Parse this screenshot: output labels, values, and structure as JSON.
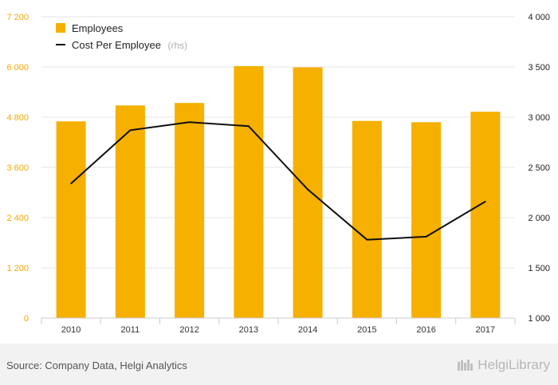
{
  "chart_data": {
    "type": "bar",
    "categories": [
      "2010",
      "2011",
      "2012",
      "2013",
      "2014",
      "2015",
      "2016",
      "2017"
    ],
    "series": [
      {
        "name": "Employees",
        "kind": "bar",
        "axis": "left",
        "values": [
          4700,
          5080,
          5140,
          6020,
          5990,
          4710,
          4680,
          4930
        ]
      },
      {
        "name": "Cost Per Employee",
        "kind": "line",
        "axis": "right",
        "values": [
          2340,
          2870,
          2950,
          2910,
          2280,
          1780,
          1810,
          2160
        ]
      }
    ],
    "y_left": {
      "ticks": [
        "0",
        "1 200",
        "2 400",
        "3 600",
        "4 800",
        "6 000",
        "7 200"
      ],
      "range": [
        0,
        7200
      ]
    },
    "y_right": {
      "ticks": [
        "1 000",
        "1 500",
        "2 000",
        "2 500",
        "3 000",
        "3 500",
        "4 000"
      ],
      "range": [
        1000,
        4000
      ]
    },
    "legend": {
      "placement": "top-left",
      "items": [
        {
          "label": "Employees",
          "suffix": ""
        },
        {
          "label": "Cost Per Employee",
          "suffix": "(rhs)"
        }
      ]
    },
    "grid": true,
    "colors": {
      "bar": "#f5b000",
      "line": "#111111",
      "left_axis_text": "#f5a800"
    }
  },
  "footer": {
    "source": "Source: Company Data, Helgi Analytics",
    "brand": "HelgiLibrary"
  }
}
